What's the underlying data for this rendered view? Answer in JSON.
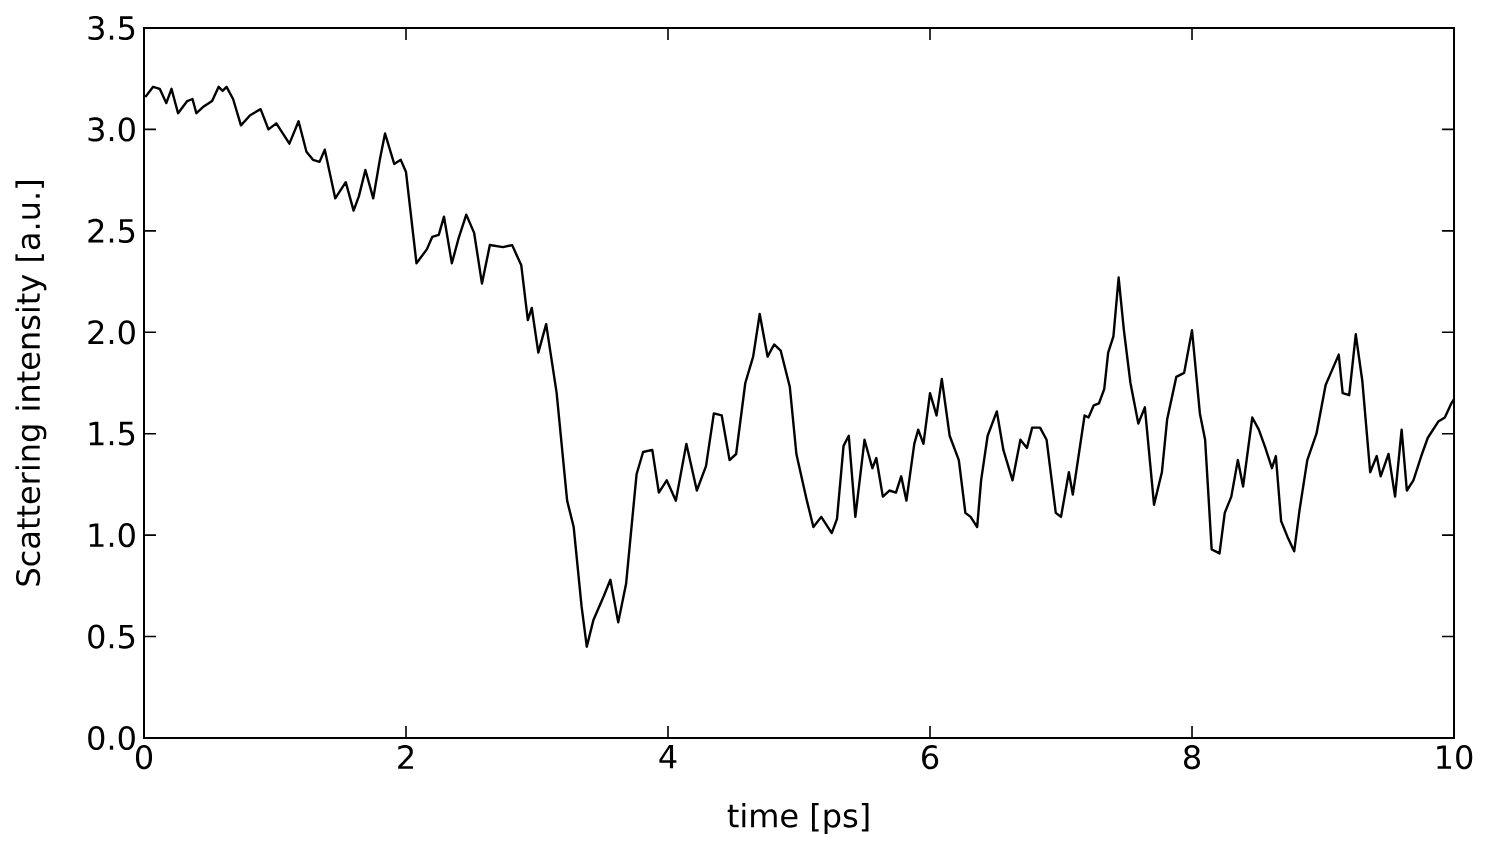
{
  "chart_data": {
    "type": "line",
    "xlabel": "time [ps]",
    "ylabel": "Scattering intensity [a.u.]",
    "xlim": [
      0,
      10
    ],
    "ylim": [
      0.0,
      3.5
    ],
    "xticks": [
      0,
      2,
      4,
      6,
      8,
      10
    ],
    "yticks": [
      {
        "value": 0,
        "label": "0.0"
      },
      {
        "value": 0.5,
        "label": "0.5"
      },
      {
        "value": 1,
        "label": "1.0"
      },
      {
        "value": 1.5,
        "label": "1.5"
      },
      {
        "value": 2,
        "label": "2.0"
      },
      {
        "value": 2.5,
        "label": "2.5"
      },
      {
        "value": 3,
        "label": "3.0"
      },
      {
        "value": 3.5,
        "label": "3.5"
      }
    ],
    "series": [
      {
        "color": "#000000",
        "x": [
          0.01,
          0.07,
          0.12,
          0.17,
          0.21,
          0.26,
          0.33,
          0.37,
          0.4,
          0.45,
          0.52,
          0.57,
          0.6,
          0.63,
          0.68,
          0.74,
          0.81,
          0.89,
          0.95,
          1.01,
          1.11,
          1.18,
          1.24,
          1.29,
          1.34,
          1.38,
          1.46,
          1.54,
          1.6,
          1.64,
          1.69,
          1.75,
          1.8,
          1.84,
          1.91,
          1.96,
          2.0,
          2.08,
          2.16,
          2.2,
          2.25,
          2.29,
          2.35,
          2.4,
          2.46,
          2.52,
          2.58,
          2.64,
          2.74,
          2.81,
          2.88,
          2.93,
          2.96,
          3.01,
          3.07,
          3.15,
          3.23,
          3.28,
          3.34,
          3.38,
          3.43,
          3.51,
          3.56,
          3.62,
          3.68,
          3.76,
          3.81,
          3.88,
          3.93,
          3.99,
          4.06,
          4.14,
          4.22,
          4.29,
          4.35,
          4.41,
          4.47,
          4.52,
          4.59,
          4.65,
          4.7,
          4.76,
          4.81,
          4.86,
          4.93,
          4.98,
          5.06,
          5.11,
          5.17,
          5.25,
          5.29,
          5.34,
          5.38,
          5.43,
          5.5,
          5.56,
          5.59,
          5.64,
          5.69,
          5.74,
          5.78,
          5.82,
          5.88,
          5.91,
          5.95,
          6.0,
          6.05,
          6.09,
          6.15,
          6.22,
          6.27,
          6.31,
          6.36,
          6.39,
          6.44,
          6.51,
          6.56,
          6.63,
          6.69,
          6.74,
          6.78,
          6.84,
          6.89,
          6.96,
          7.0,
          7.06,
          7.09,
          7.18,
          7.21,
          7.25,
          7.29,
          7.33,
          7.36,
          7.4,
          7.44,
          7.48,
          7.53,
          7.59,
          7.64,
          7.71,
          7.77,
          7.81,
          7.88,
          7.94,
          8.0,
          8.06,
          8.1,
          8.15,
          8.21,
          8.25,
          8.3,
          8.35,
          8.39,
          8.46,
          8.51,
          8.56,
          8.61,
          8.64,
          8.68,
          8.73,
          8.78,
          8.82,
          8.88,
          8.95,
          9.02,
          9.06,
          9.12,
          9.15,
          9.2,
          9.25,
          9.3,
          9.36,
          9.41,
          9.44,
          9.5,
          9.55,
          9.6,
          9.64,
          9.69,
          9.75,
          9.8,
          9.88,
          9.93,
          9.98,
          10.0
        ],
        "values": [
          3.16,
          3.21,
          3.2,
          3.13,
          3.2,
          3.08,
          3.14,
          3.15,
          3.08,
          3.11,
          3.14,
          3.21,
          3.19,
          3.21,
          3.15,
          3.02,
          3.07,
          3.1,
          3.0,
          3.03,
          2.93,
          3.04,
          2.89,
          2.85,
          2.84,
          2.9,
          2.66,
          2.74,
          2.6,
          2.67,
          2.8,
          2.66,
          2.85,
          2.98,
          2.83,
          2.85,
          2.79,
          2.34,
          2.41,
          2.47,
          2.48,
          2.57,
          2.34,
          2.46,
          2.58,
          2.49,
          2.24,
          2.43,
          2.42,
          2.43,
          2.33,
          2.06,
          2.12,
          1.9,
          2.04,
          1.7,
          1.17,
          1.04,
          0.65,
          0.45,
          0.58,
          0.7,
          0.78,
          0.57,
          0.76,
          1.3,
          1.41,
          1.42,
          1.21,
          1.27,
          1.17,
          1.45,
          1.22,
          1.34,
          1.6,
          1.59,
          1.37,
          1.4,
          1.75,
          1.88,
          2.09,
          1.88,
          1.94,
          1.91,
          1.73,
          1.4,
          1.17,
          1.04,
          1.09,
          1.01,
          1.08,
          1.44,
          1.49,
          1.09,
          1.47,
          1.33,
          1.38,
          1.19,
          1.22,
          1.21,
          1.29,
          1.17,
          1.45,
          1.52,
          1.45,
          1.7,
          1.59,
          1.77,
          1.49,
          1.37,
          1.11,
          1.09,
          1.04,
          1.27,
          1.49,
          1.61,
          1.42,
          1.27,
          1.47,
          1.43,
          1.53,
          1.53,
          1.47,
          1.11,
          1.09,
          1.31,
          1.2,
          1.59,
          1.58,
          1.64,
          1.65,
          1.72,
          1.9,
          1.98,
          2.27,
          2.01,
          1.75,
          1.55,
          1.63,
          1.15,
          1.31,
          1.57,
          1.78,
          1.8,
          2.01,
          1.6,
          1.47,
          0.93,
          0.91,
          1.11,
          1.19,
          1.37,
          1.24,
          1.58,
          1.52,
          1.43,
          1.33,
          1.39,
          1.07,
          0.99,
          0.92,
          1.12,
          1.37,
          1.5,
          1.74,
          1.8,
          1.89,
          1.7,
          1.69,
          1.99,
          1.76,
          1.31,
          1.39,
          1.29,
          1.4,
          1.19,
          1.52,
          1.22,
          1.27,
          1.39,
          1.48,
          1.56,
          1.58,
          1.65,
          1.67
        ]
      }
    ]
  }
}
